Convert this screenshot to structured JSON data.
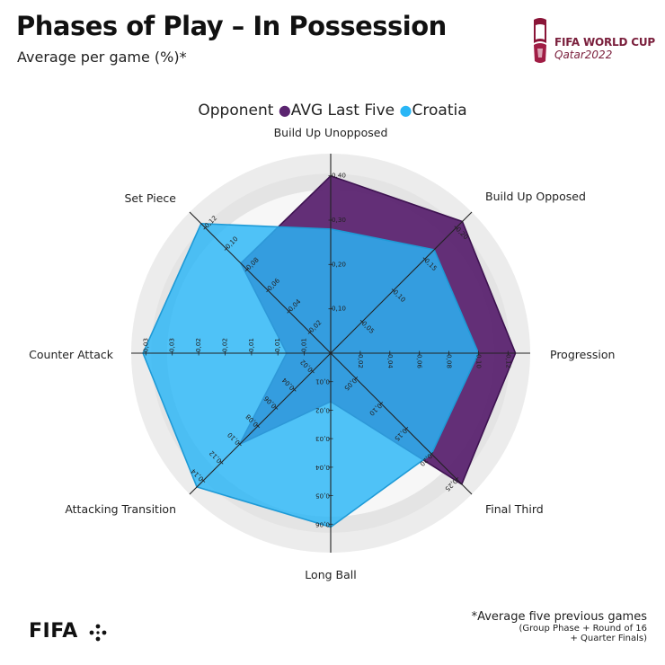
{
  "header": {
    "title": "Phases of Play – In Possession",
    "subtitle": "Average per game (%)*"
  },
  "logo": {
    "line1": "FIFA WORLD CUP",
    "line2": "Qatar2022",
    "brand": "FIFA"
  },
  "legend": {
    "title": "Opponent",
    "items": [
      "AVG Last Five",
      "Croatia"
    ]
  },
  "footnote": {
    "line1": "*Average five previous games",
    "line2": "(Group Phase + Round of 16",
    "line3": "+ Quarter Finals)"
  },
  "colors": {
    "avg": "#5b2470",
    "croatia": "#29b6f6",
    "grid_outer": "#ececec",
    "grid_inner": "#e4e4e4"
  },
  "chart_data": {
    "type": "radar",
    "axes": [
      {
        "label": "Build Up Unopposed",
        "max": 0.45,
        "ticks": [
          "0,10",
          "0,20",
          "0,30",
          "0,40"
        ],
        "tick_values": [
          0.1,
          0.2,
          0.3,
          0.4
        ]
      },
      {
        "label": "Build Up Opposed",
        "max": 0.225,
        "ticks": [
          "0,05",
          "0,10",
          "0,15",
          "0,20"
        ],
        "tick_values": [
          0.05,
          0.1,
          0.15,
          0.2
        ]
      },
      {
        "label": "Progression",
        "max": 0.135,
        "ticks": [
          "0,02",
          "0,04",
          "0,06",
          "0,08",
          "0,10",
          "0,12"
        ],
        "tick_values": [
          0.02,
          0.04,
          0.06,
          0.08,
          0.1,
          0.12
        ]
      },
      {
        "label": "Final Third",
        "max": 0.28,
        "ticks": [
          "0,05",
          "0,10",
          "0,15",
          "0,20",
          "0,25"
        ],
        "tick_values": [
          0.05,
          0.1,
          0.15,
          0.2,
          0.25
        ]
      },
      {
        "label": "Long Ball",
        "max": 0.07,
        "ticks": [
          "0,01",
          "0,02",
          "0,03",
          "0,04",
          "0,05",
          "0,06"
        ],
        "tick_values": [
          0.01,
          0.02,
          0.03,
          0.04,
          0.05,
          0.06
        ]
      },
      {
        "label": "Attacking Transition",
        "max": 0.155,
        "ticks": [
          "0,02",
          "0,04",
          "0,06",
          "0,08",
          "0,10",
          "0,12",
          "0,14"
        ],
        "tick_values": [
          0.02,
          0.04,
          0.06,
          0.08,
          0.1,
          0.12,
          0.14
        ]
      },
      {
        "label": "Counter Attack",
        "max": 0.034,
        "ticks": [
          "0,01",
          "0,01",
          "0,01",
          "0,02",
          "0,02",
          "0,03",
          "0,03"
        ],
        "tick_values": [
          0.0045,
          0.009,
          0.0135,
          0.018,
          0.0225,
          0.027,
          0.0315
        ]
      },
      {
        "label": "Set Piece",
        "max": 0.135,
        "ticks": [
          "0,02",
          "0,04",
          "0,06",
          "0,08",
          "0,10",
          "0,12"
        ],
        "tick_values": [
          0.02,
          0.04,
          0.06,
          0.08,
          0.1,
          0.12
        ]
      }
    ],
    "series": [
      {
        "name": "AVG Last Five",
        "values": [
          0.4,
          0.21,
          0.125,
          0.26,
          0.017,
          0.1,
          0.0075,
          0.086
        ]
      },
      {
        "name": "Croatia",
        "values": [
          0.28,
          0.165,
          0.1,
          0.2,
          0.061,
          0.147,
          0.032,
          0.124
        ]
      }
    ]
  }
}
